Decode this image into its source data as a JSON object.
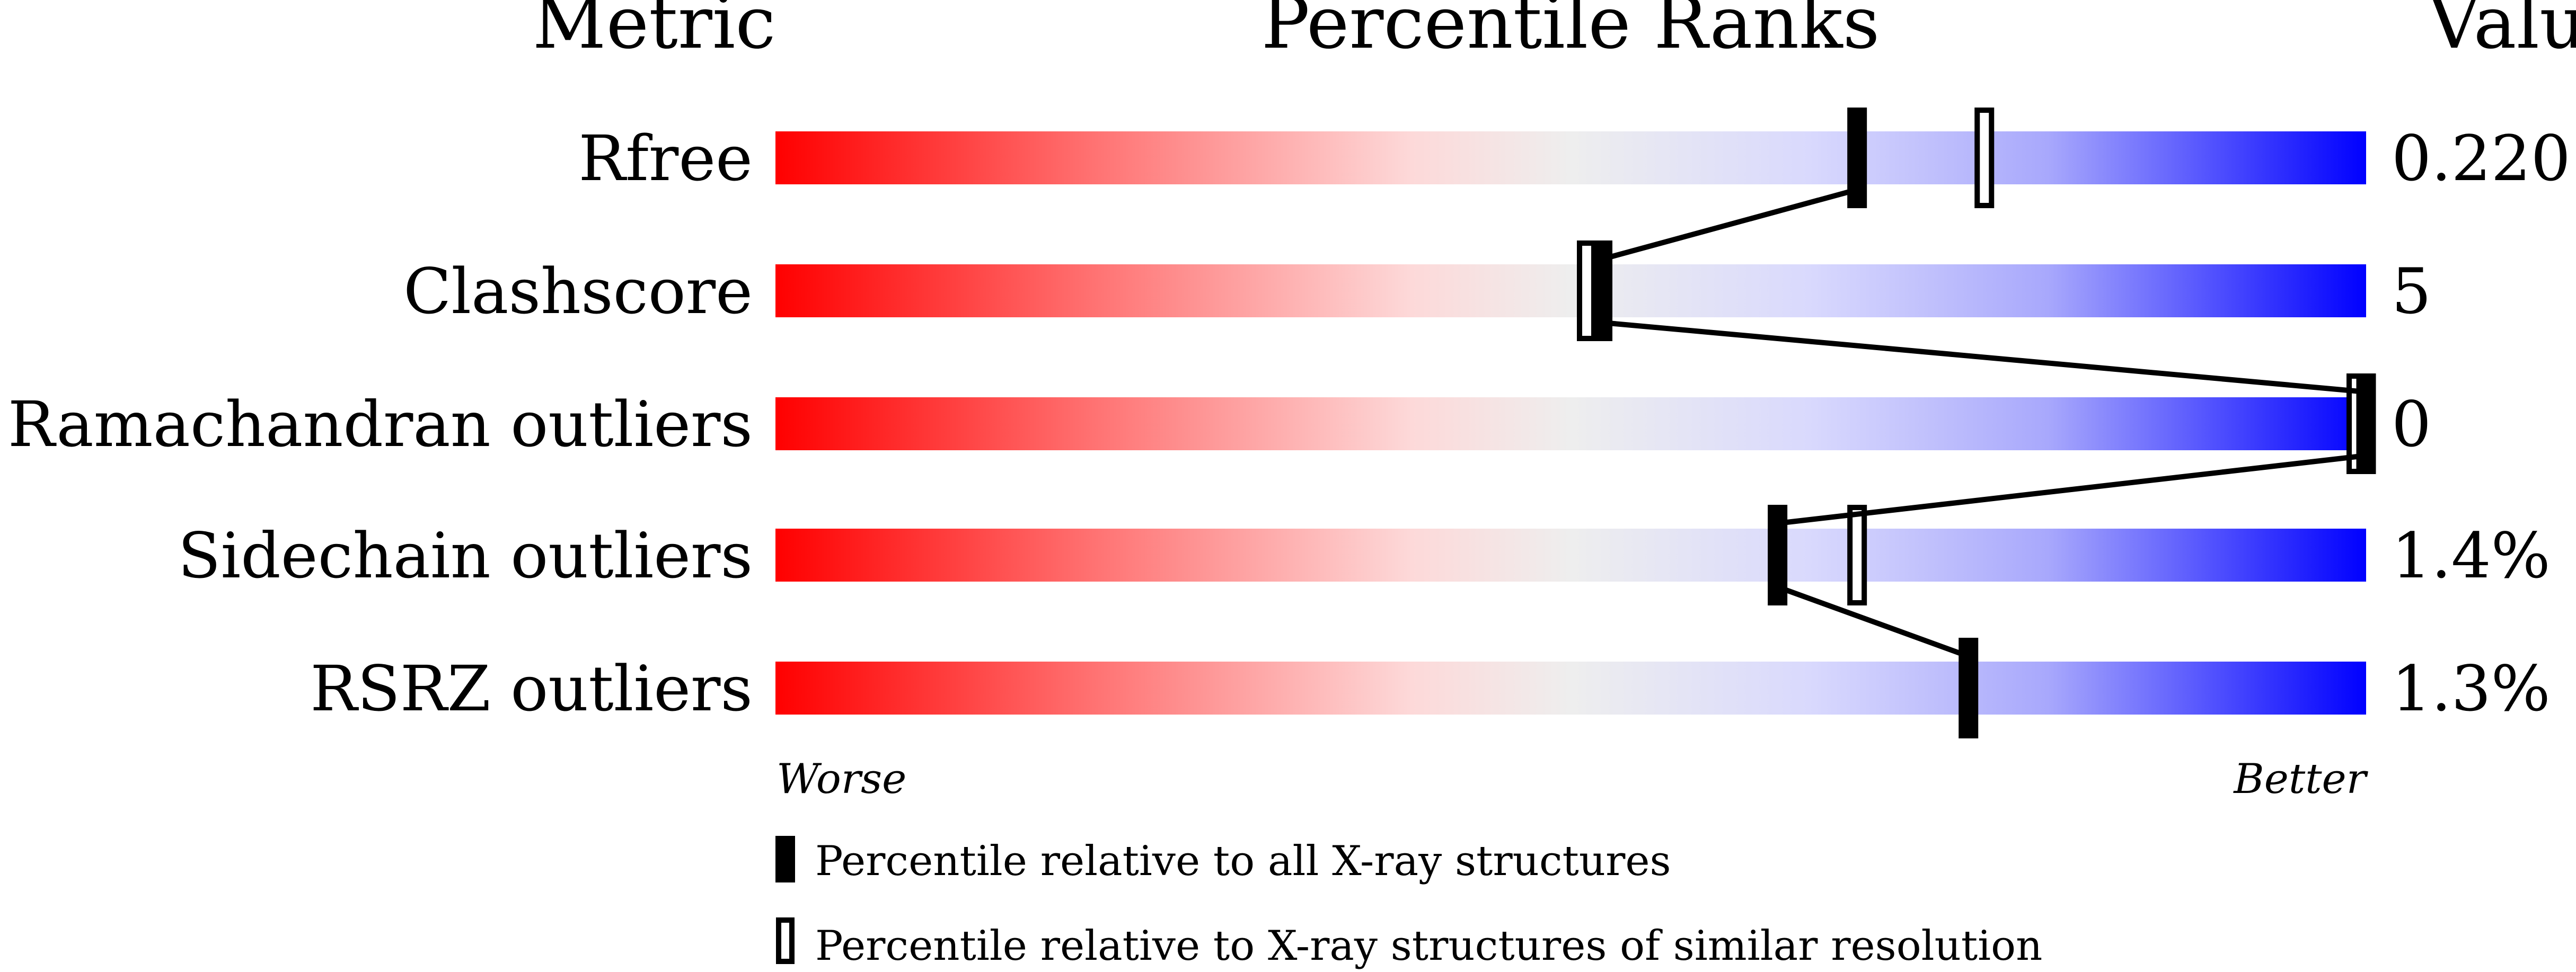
{
  "chart_data": {
    "type": "percentile-bar",
    "headers": {
      "metric": "Metric",
      "ranks": "Percentile Ranks",
      "value": "Value"
    },
    "xlim": [
      0,
      100
    ],
    "axis_labels": {
      "left": "Worse",
      "right": "Better"
    },
    "colors": {
      "worse": "#ff0000",
      "middle": "#eeeeee",
      "better": "#0000ff",
      "marker": "#000000"
    },
    "rows": [
      {
        "metric": "Rfree",
        "value": "0.220",
        "percentile_all": 68,
        "percentile_similar": 76
      },
      {
        "metric": "Clashscore",
        "value": "5",
        "percentile_all": 52,
        "percentile_similar": 51
      },
      {
        "metric": "Ramachandran outliers",
        "value": "0",
        "percentile_all": 100,
        "percentile_similar": 100
      },
      {
        "metric": "Sidechain outliers",
        "value": "1.4%",
        "percentile_all": 63,
        "percentile_similar": 68
      },
      {
        "metric": "RSRZ outliers",
        "value": "1.3%",
        "percentile_all": 75,
        "percentile_similar": null
      }
    ],
    "legend": [
      {
        "marker": "filled",
        "label": "Percentile relative to all X-ray structures"
      },
      {
        "marker": "open",
        "label": "Percentile relative to X-ray structures of similar resolution"
      }
    ]
  }
}
